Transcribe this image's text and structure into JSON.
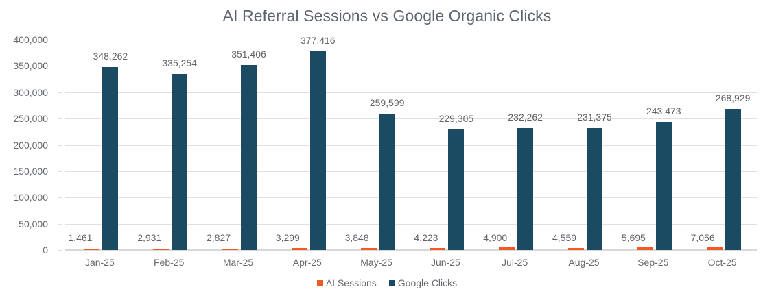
{
  "chart_data": {
    "type": "bar",
    "title": "AI Referral Sessions vs Google Organic Clicks",
    "xlabel": "",
    "ylabel": "",
    "ylim": [
      0,
      400000
    ],
    "yticks": [
      0,
      50000,
      100000,
      150000,
      200000,
      250000,
      300000,
      350000,
      400000
    ],
    "ytick_labels": [
      "0",
      "50,000",
      "100,000",
      "150,000",
      "200,000",
      "250,000",
      "300,000",
      "350,000",
      "400,000"
    ],
    "grid": true,
    "legend_position": "bottom",
    "categories": [
      "Jan-25",
      "Feb-25",
      "Mar-25",
      "Apr-25",
      "May-25",
      "Jun-25",
      "Jul-25",
      "Aug-25",
      "Sep-25",
      "Oct-25"
    ],
    "series": [
      {
        "name": "AI Sessions",
        "color": "#f15a24",
        "values": [
          1461,
          2931,
          2827,
          3299,
          3848,
          4223,
          4900,
          4559,
          5695,
          7056
        ],
        "labels": [
          "1,461",
          "2,931",
          "2,827",
          "3,299",
          "3,848",
          "4,223",
          "4,900",
          "4,559",
          "5,695",
          "7,056"
        ]
      },
      {
        "name": "Google Clicks",
        "color": "#1b4a63",
        "values": [
          348262,
          335254,
          351406,
          377416,
          259599,
          229305,
          232262,
          231375,
          243473,
          268929
        ],
        "labels": [
          "348,262",
          "335,254",
          "351,406",
          "377,416",
          "259,599",
          "229,305",
          "232,262",
          "231,375",
          "243,473",
          "268,929"
        ]
      }
    ]
  },
  "legend": {
    "items": [
      {
        "label": "AI Sessions",
        "color": "#f15a24"
      },
      {
        "label": "Google Clicks",
        "color": "#1b4a63"
      }
    ]
  }
}
